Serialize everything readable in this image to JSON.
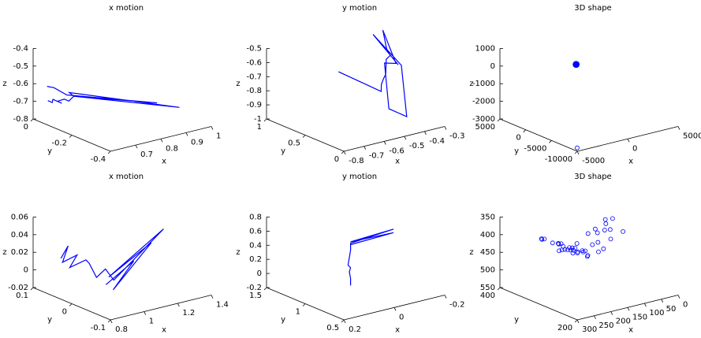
{
  "chart_data": [
    {
      "type": "line3d",
      "title": "x motion",
      "xlabel": "x",
      "ylabel": "y",
      "zlabel": "z",
      "xlim": [
        0.6,
        1
      ],
      "ylim": [
        -0.4,
        0
      ],
      "zlim": [
        -0.8,
        -0.4
      ],
      "xticks": [
        0.7,
        0.8,
        0.9,
        1
      ],
      "yticks": [
        -0.4,
        -0.2,
        0
      ],
      "zticks": [
        -0.8,
        -0.7,
        -0.6,
        -0.5,
        -0.4
      ],
      "series": [
        {
          "color": "#0000ff",
          "x": [
            0.62,
            0.63,
            0.64,
            0.66,
            0.65,
            0.67,
            0.68,
            0.7,
            0.69,
            0.72,
            0.95,
            0.7,
            0.9,
            0.68,
            0.66,
            0.64
          ],
          "y": [
            -0.05,
            -0.06,
            -0.05,
            -0.07,
            -0.06,
            -0.07,
            -0.08,
            -0.08,
            -0.07,
            -0.09,
            -0.3,
            -0.08,
            -0.25,
            -0.07,
            -0.03,
            -0.02
          ],
          "z": [
            -0.68,
            -0.69,
            -0.68,
            -0.7,
            -0.69,
            -0.68,
            -0.69,
            -0.67,
            -0.65,
            -0.66,
            -0.72,
            -0.67,
            -0.7,
            -0.66,
            -0.63,
            -0.62
          ]
        }
      ]
    },
    {
      "type": "line3d",
      "title": "y motion",
      "xlabel": "x",
      "ylabel": "y",
      "zlabel": "z",
      "xlim": [
        -0.8,
        -0.3
      ],
      "ylim": [
        0,
        1
      ],
      "zlim": [
        -1,
        -0.5
      ],
      "xticks": [
        -0.8,
        -0.7,
        -0.6,
        -0.5,
        -0.4,
        -0.3
      ],
      "yticks": [
        0,
        0.5,
        1
      ],
      "zticks": [
        -1,
        -0.9,
        -0.8,
        -0.7,
        -0.6,
        -0.5
      ],
      "series": [
        {
          "color": "#0000ff",
          "x": [
            -0.75,
            -0.5,
            -0.48,
            -0.45,
            -0.42,
            -0.4,
            -0.38,
            -0.36,
            -0.34,
            -0.32,
            -0.3,
            -0.35,
            -0.33,
            -0.5,
            -0.45,
            -0.4,
            -0.31,
            -0.3
          ],
          "y": [
            0.2,
            0.3,
            0.35,
            0.4,
            0.45,
            0.5,
            0.55,
            0.6,
            0.6,
            0.7,
            0.8,
            0.5,
            0.7,
            0.2,
            0.1,
            0.3,
            0.9,
            0.6
          ],
          "z": [
            -0.5,
            -0.75,
            -0.72,
            -0.7,
            -0.69,
            -0.67,
            -0.66,
            -0.64,
            -0.62,
            -0.6,
            -0.5,
            -0.65,
            -0.7,
            -0.85,
            -0.9,
            -0.6,
            -0.55,
            -0.7
          ]
        }
      ]
    },
    {
      "type": "scatter3d",
      "title": "3D shape",
      "xlabel": "x",
      "ylabel": "y",
      "zlabel": "z",
      "xlim": [
        -5000,
        5000
      ],
      "ylim": [
        -10000,
        5000
      ],
      "zlim": [
        -3000,
        1000
      ],
      "xticks": [
        -5000,
        0,
        5000
      ],
      "yticks": [
        -10000,
        -5000,
        0,
        5000
      ],
      "zticks": [
        -3000,
        -2000,
        -1000,
        0,
        1000
      ],
      "series": [
        {
          "color": "#0000ff",
          "marker": "filled",
          "x": [
            0
          ],
          "y": [
            0
          ],
          "z": [
            0
          ]
        },
        {
          "color": "#0000ff",
          "marker": "circle",
          "x": [
            -4500
          ],
          "y": [
            -9000
          ],
          "z": [
            -3000
          ]
        }
      ]
    },
    {
      "type": "line3d",
      "title": "x motion",
      "xlabel": "x",
      "ylabel": "y",
      "zlabel": "z",
      "xlim": [
        0.8,
        1.4
      ],
      "ylim": [
        -0.1,
        0.1
      ],
      "zlim": [
        -0.02,
        0.06
      ],
      "xticks": [
        0.8,
        1,
        1.2,
        1.4
      ],
      "yticks": [
        -0.1,
        0,
        0.1
      ],
      "zticks": [
        -0.02,
        0,
        0.02,
        0.04,
        0.06
      ],
      "series": [
        {
          "color": "#0000ff",
          "x": [
            0.85,
            0.87,
            0.86,
            0.9,
            0.88,
            0.93,
            0.95,
            0.97,
            1.0,
            1.05,
            1.3,
            1.02,
            1.25,
            1.0,
            1.1,
            0.98
          ],
          "y": [
            0.05,
            0.04,
            0.05,
            0.03,
            0.04,
            0.02,
            0.02,
            0.01,
            0.0,
            0.0,
            -0.02,
            0.0,
            -0.01,
            -0.02,
            -0.03,
            -0.01
          ],
          "z": [
            0.02,
            0.035,
            0.015,
            0.025,
            0.01,
            0.02,
            0.015,
            0.0,
            0.01,
            -0.005,
            0.045,
            0.0,
            0.03,
            -0.01,
            0.02,
            -0.005
          ]
        }
      ]
    },
    {
      "type": "line3d",
      "title": "y motion",
      "xlabel": "x",
      "ylabel": "y",
      "zlabel": "z",
      "xlim": [
        -0.2,
        0.2
      ],
      "xdir": "reverse",
      "ylim": [
        0.5,
        1.5
      ],
      "zlim": [
        -0.2,
        0.8
      ],
      "xticks": [
        -0.2,
        0,
        0.2
      ],
      "yticks": [
        0.5,
        1,
        1.5
      ],
      "zticks": [
        -0.2,
        0,
        0.2,
        0.4,
        0.6,
        0.8
      ],
      "series": [
        {
          "color": "#0000ff",
          "x": [
            0.02,
            0.02,
            0.025,
            0.02,
            0.03,
            0.025,
            0.02,
            0.02,
            0.02,
            -0.15,
            0.02,
            -0.15,
            0.02
          ],
          "y": [
            1,
            1,
            1,
            1,
            1,
            1,
            1,
            1,
            1,
            1,
            1,
            1,
            1
          ],
          "z": [
            -0.1,
            0.0,
            0.1,
            0.15,
            0.2,
            0.3,
            0.4,
            0.45,
            0.5,
            0.55,
            0.52,
            0.5,
            0.48
          ]
        }
      ]
    },
    {
      "type": "scatter3d",
      "title": "3D shape",
      "xlabel": "x",
      "ylabel": "y",
      "zlabel": "z",
      "xlim": [
        0,
        300
      ],
      "xdir": "reverse",
      "ylim": [
        200,
        400
      ],
      "zlim": [
        350,
        550
      ],
      "zdir": "reverse",
      "xticks": [
        0,
        50,
        100,
        150,
        200,
        250,
        300
      ],
      "yticks": [
        200,
        400
      ],
      "zticks": [
        350,
        400,
        450,
        500,
        550
      ],
      "series": [
        {
          "color": "#0000ff",
          "marker": "circle",
          "x": [
            290,
            280,
            270,
            260,
            250,
            240,
            230,
            220,
            210,
            200,
            190,
            180,
            170,
            165,
            160,
            155,
            150,
            145,
            140,
            135,
            130,
            125,
            120,
            115,
            110,
            100,
            90,
            80,
            285,
            265,
            245,
            225,
            205,
            185,
            175,
            150,
            140,
            130,
            120,
            95
          ],
          "y": [
            300,
            310,
            290,
            320,
            280,
            300,
            310,
            290,
            320,
            300,
            280,
            310,
            300,
            290,
            320,
            300,
            310,
            280,
            300,
            290,
            320,
            300,
            310,
            290,
            280,
            300,
            310,
            300,
            260,
            270,
            280,
            290,
            300,
            310,
            320,
            330,
            340,
            280,
            270,
            260
          ],
          "z": [
            370,
            375,
            380,
            385,
            390,
            395,
            400,
            405,
            410,
            415,
            420,
            425,
            430,
            440,
            445,
            450,
            440,
            430,
            420,
            410,
            400,
            390,
            385,
            380,
            375,
            370,
            365,
            360,
            385,
            392,
            400,
            410,
            420,
            430,
            445,
            455,
            435,
            425,
            395,
            375
          ]
        }
      ]
    }
  ]
}
